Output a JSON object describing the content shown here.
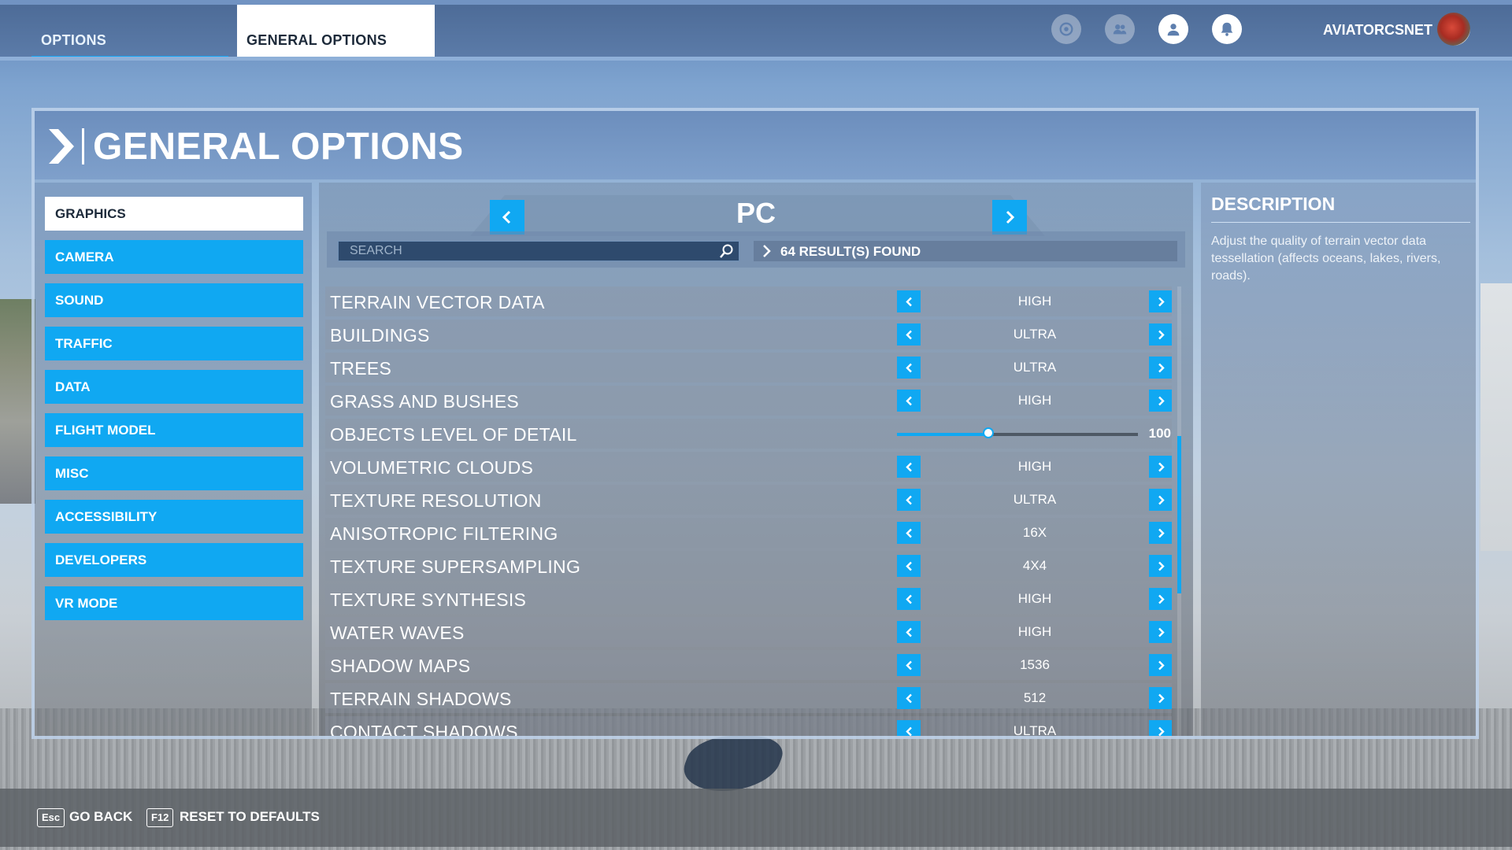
{
  "tabs": {
    "options": "OPTIONS",
    "general": "GENERAL OPTIONS"
  },
  "user": {
    "name": "AVIATORCSNET"
  },
  "header": {
    "title": "GENERAL OPTIONS"
  },
  "sidebar": {
    "items": [
      {
        "label": "GRAPHICS",
        "active": true
      },
      {
        "label": "CAMERA"
      },
      {
        "label": "SOUND"
      },
      {
        "label": "TRAFFIC"
      },
      {
        "label": "DATA"
      },
      {
        "label": "FLIGHT MODEL"
      },
      {
        "label": "MISC"
      },
      {
        "label": "ACCESSIBILITY"
      },
      {
        "label": "DEVELOPERS"
      },
      {
        "label": "VR MODE"
      }
    ]
  },
  "preset": {
    "label": "PC"
  },
  "search": {
    "placeholder": "SEARCH",
    "results": "64 RESULT(S) FOUND"
  },
  "settings": [
    {
      "label": "TERRAIN VECTOR DATA",
      "value": "HIGH"
    },
    {
      "label": "BUILDINGS",
      "value": "ULTRA"
    },
    {
      "label": "TREES",
      "value": "ULTRA"
    },
    {
      "label": "GRASS AND BUSHES",
      "value": "HIGH"
    },
    {
      "label": "OBJECTS LEVEL OF DETAIL",
      "value": "100",
      "slider": true,
      "slider_fraction": 0.38
    },
    {
      "label": "VOLUMETRIC CLOUDS",
      "value": "HIGH"
    },
    {
      "label": "TEXTURE RESOLUTION",
      "value": "ULTRA"
    },
    {
      "label": "ANISOTROPIC FILTERING",
      "value": "16X"
    },
    {
      "label": "TEXTURE SUPERSAMPLING",
      "value": "4X4"
    },
    {
      "label": "TEXTURE SYNTHESIS",
      "value": "HIGH"
    },
    {
      "label": "WATER WAVES",
      "value": "HIGH"
    },
    {
      "label": "SHADOW MAPS",
      "value": "1536"
    },
    {
      "label": "TERRAIN SHADOWS",
      "value": "512"
    },
    {
      "label": "CONTACT SHADOWS",
      "value": "ULTRA"
    }
  ],
  "description": {
    "title": "DESCRIPTION",
    "text": "Adjust the quality of terrain vector data tessellation (affects oceans, lakes, rivers, roads)."
  },
  "footer": {
    "back_key": "Esc",
    "back_label": "GO BACK",
    "reset_key": "F12",
    "reset_label": "RESET TO DEFAULTS"
  },
  "colors": {
    "accent": "#10a8f2",
    "active_tab": "#ffffff"
  },
  "icons": [
    "rewards-icon",
    "friends-icon",
    "profile-icon",
    "notification-icon",
    "search-icon"
  ]
}
